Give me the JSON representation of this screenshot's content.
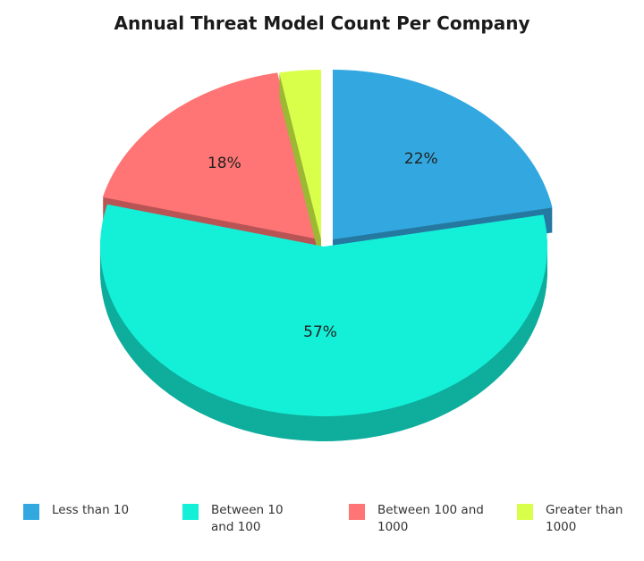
{
  "chart_data": {
    "type": "pie",
    "title": "Annual Threat Model Count Per Company",
    "legend_position": "bottom",
    "slices": [
      {
        "name": "Less than 10",
        "value": 22,
        "label": "22%",
        "color": "#33a8e0"
      },
      {
        "name": "Between 10 and 100",
        "value": 57,
        "label": "57%",
        "color": "#14f0d8"
      },
      {
        "name": "Between 100 and 1000",
        "value": 18,
        "label": "18%",
        "color": "#ff7575"
      },
      {
        "name": "Greater than 1000",
        "value": 3,
        "label": "",
        "color": "#daff4a"
      }
    ]
  }
}
